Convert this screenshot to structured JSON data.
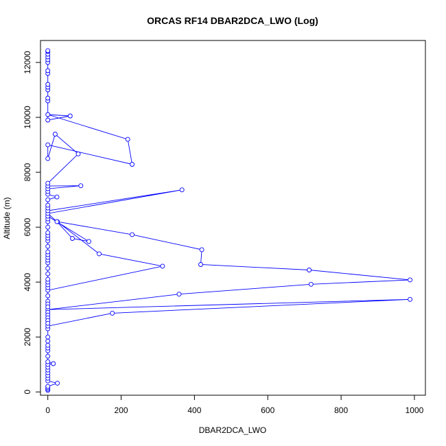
{
  "chart_data": {
    "type": "line",
    "title": "ORCAS RF14 DBAR2DCA_LWO (Log)",
    "xlabel": "DBAR2DCA_LWO",
    "ylabel": "Altitude (m)",
    "xlim": [
      -20,
      1030
    ],
    "ylim": [
      -120,
      12800
    ],
    "x_ticks": [
      0,
      200,
      400,
      600,
      800,
      1000
    ],
    "y_ticks": [
      0,
      2000,
      4000,
      6000,
      8000,
      10000,
      12000
    ],
    "grid": false,
    "legend": "none",
    "marker": "open-circle",
    "series_color": "#0000ff",
    "series": [
      {
        "points": [
          [
            0,
            60
          ],
          [
            0,
            100
          ],
          [
            0,
            150
          ],
          [
            0,
            200
          ],
          [
            26,
            320
          ],
          [
            0,
            400
          ],
          [
            0,
            500
          ],
          [
            0,
            600
          ],
          [
            0,
            700
          ],
          [
            0,
            800
          ],
          [
            0,
            900
          ],
          [
            0,
            1000
          ],
          [
            15,
            1030
          ],
          [
            0,
            1100
          ],
          [
            0,
            1300
          ],
          [
            0,
            1500
          ],
          [
            0,
            1600
          ],
          [
            0,
            1700
          ],
          [
            0,
            1850
          ],
          [
            0,
            2000
          ],
          [
            0,
            2300
          ],
          [
            0,
            2400
          ],
          [
            176,
            2870
          ],
          [
            988,
            3370
          ],
          [
            0,
            3000
          ],
          [
            358,
            3560
          ],
          [
            718,
            3920
          ],
          [
            988,
            4080
          ],
          [
            713,
            4440
          ],
          [
            417,
            4640
          ],
          [
            420,
            5180
          ],
          [
            230,
            5730
          ],
          [
            26,
            6200
          ],
          [
            140,
            5030
          ],
          [
            313,
            4580
          ],
          [
            0,
            3700
          ],
          [
            0,
            3500
          ],
          [
            0,
            3300
          ],
          [
            0,
            3200
          ],
          [
            0,
            3100
          ],
          [
            0,
            2900
          ],
          [
            0,
            2800
          ],
          [
            0,
            2700
          ],
          [
            0,
            2600
          ],
          [
            0,
            2500
          ],
          [
            0,
            3800
          ],
          [
            0,
            3900
          ],
          [
            0,
            4000
          ],
          [
            0,
            4100
          ],
          [
            0,
            4300
          ],
          [
            0,
            4500
          ],
          [
            0,
            4700
          ],
          [
            0,
            4800
          ],
          [
            0,
            4900
          ],
          [
            0,
            5000
          ],
          [
            0,
            5100
          ],
          [
            0,
            5300
          ],
          [
            0,
            5500
          ],
          [
            0,
            5600
          ],
          [
            0,
            5700
          ],
          [
            0,
            5800
          ],
          [
            0,
            6000
          ],
          [
            0,
            6200
          ],
          [
            0,
            6300
          ],
          [
            0,
            6400
          ],
          [
            112,
            5480
          ],
          [
            67,
            5590
          ],
          [
            25,
            6200
          ],
          [
            0,
            6500
          ],
          [
            366,
            7360
          ],
          [
            0,
            6600
          ],
          [
            0,
            6700
          ],
          [
            0,
            6800
          ],
          [
            0,
            7000
          ],
          [
            25,
            7100
          ],
          [
            0,
            7200
          ],
          [
            0,
            7300
          ],
          [
            0,
            7400
          ],
          [
            90,
            7510
          ],
          [
            0,
            7500
          ],
          [
            0,
            7600
          ],
          [
            83,
            8670
          ],
          [
            20,
            9390
          ],
          [
            0,
            8500
          ],
          [
            0,
            9000
          ],
          [
            230,
            8290
          ],
          [
            218,
            9200
          ],
          [
            0,
            10100
          ],
          [
            61,
            10050
          ],
          [
            0,
            9900
          ],
          [
            0,
            10600
          ],
          [
            0,
            10700
          ],
          [
            0,
            11000
          ],
          [
            0,
            11100
          ],
          [
            0,
            11200
          ],
          [
            0,
            11600
          ],
          [
            0,
            11700
          ],
          [
            0,
            12000
          ],
          [
            0,
            12100
          ],
          [
            0,
            12200
          ],
          [
            0,
            12300
          ],
          [
            0,
            12400
          ],
          [
            0,
            12430
          ]
        ]
      }
    ]
  }
}
